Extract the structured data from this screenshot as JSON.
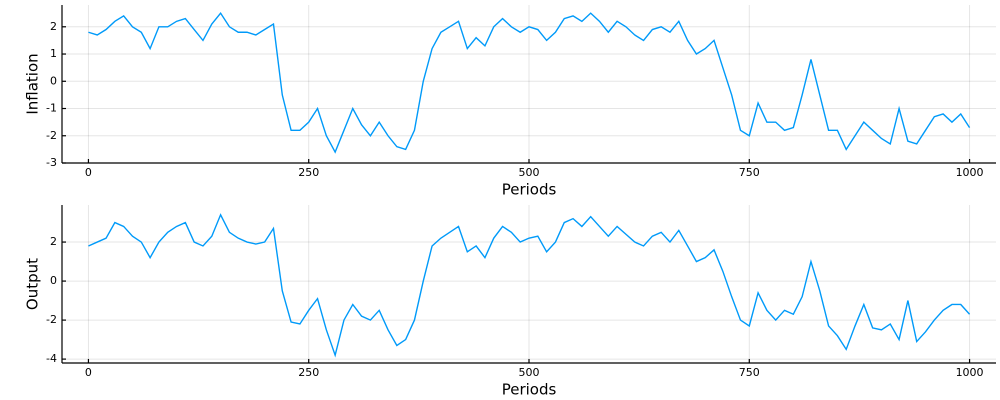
{
  "chart_data": [
    {
      "type": "line",
      "xlabel": "Periods",
      "ylabel": "Inflation",
      "color": "#009af9",
      "grid": true,
      "xlim": [
        -30,
        1030
      ],
      "xticks": [
        0,
        250,
        500,
        750,
        1000
      ],
      "ylim": [
        -3,
        2.8
      ],
      "yticks": [
        -3,
        -2,
        -1,
        0,
        1,
        2
      ],
      "x": [
        0,
        10,
        20,
        30,
        40,
        50,
        60,
        70,
        80,
        90,
        100,
        110,
        120,
        130,
        140,
        150,
        160,
        170,
        180,
        190,
        200,
        210,
        220,
        230,
        240,
        250,
        260,
        270,
        280,
        290,
        300,
        310,
        320,
        330,
        340,
        350,
        360,
        370,
        380,
        390,
        400,
        410,
        420,
        430,
        440,
        450,
        460,
        470,
        480,
        490,
        500,
        510,
        520,
        530,
        540,
        550,
        560,
        570,
        580,
        590,
        600,
        610,
        620,
        630,
        640,
        650,
        660,
        670,
        680,
        690,
        700,
        710,
        720,
        730,
        740,
        750,
        760,
        770,
        780,
        790,
        800,
        810,
        820,
        830,
        840,
        850,
        860,
        870,
        880,
        890,
        900,
        910,
        920,
        930,
        940,
        950,
        960,
        970,
        980,
        990,
        1000
      ],
      "values": [
        1.8,
        1.7,
        1.9,
        2.2,
        2.4,
        2.0,
        1.8,
        1.2,
        2.0,
        2.0,
        2.2,
        2.3,
        1.9,
        1.5,
        2.1,
        2.5,
        2.0,
        1.8,
        1.8,
        1.7,
        1.9,
        2.1,
        -0.5,
        -1.8,
        -1.8,
        -1.5,
        -1.0,
        -2.0,
        -2.6,
        -1.8,
        -1.0,
        -1.6,
        -2.0,
        -1.5,
        -2.0,
        -2.4,
        -2.5,
        -1.8,
        0.0,
        1.2,
        1.8,
        2.0,
        2.2,
        1.2,
        1.6,
        1.3,
        2.0,
        2.3,
        2.0,
        1.8,
        2.0,
        1.9,
        1.5,
        1.8,
        2.3,
        2.4,
        2.2,
        2.5,
        2.2,
        1.8,
        2.2,
        2.0,
        1.7,
        1.5,
        1.9,
        2.0,
        1.8,
        2.2,
        1.5,
        1.0,
        1.2,
        1.5,
        0.5,
        -0.5,
        -1.8,
        -2.0,
        -0.8,
        -1.5,
        -1.5,
        -1.8,
        -1.7,
        -0.5,
        0.8,
        -0.5,
        -1.8,
        -1.8,
        -2.5,
        -2.0,
        -1.5,
        -1.8,
        -2.1,
        -2.3,
        -1.0,
        -2.2,
        -2.3,
        -1.8,
        -1.3,
        -1.2,
        -1.5,
        -1.2,
        -1.7
      ]
    },
    {
      "type": "line",
      "xlabel": "Periods",
      "ylabel": "Output",
      "color": "#009af9",
      "grid": true,
      "xlim": [
        -30,
        1030
      ],
      "xticks": [
        0,
        250,
        500,
        750,
        1000
      ],
      "ylim": [
        -4.2,
        3.9
      ],
      "yticks": [
        -4,
        -2,
        0,
        2
      ],
      "x": [
        0,
        10,
        20,
        30,
        40,
        50,
        60,
        70,
        80,
        90,
        100,
        110,
        120,
        130,
        140,
        150,
        160,
        170,
        180,
        190,
        200,
        210,
        220,
        230,
        240,
        250,
        260,
        270,
        280,
        290,
        300,
        310,
        320,
        330,
        340,
        350,
        360,
        370,
        380,
        390,
        400,
        410,
        420,
        430,
        440,
        450,
        460,
        470,
        480,
        490,
        500,
        510,
        520,
        530,
        540,
        550,
        560,
        570,
        580,
        590,
        600,
        610,
        620,
        630,
        640,
        650,
        660,
        670,
        680,
        690,
        700,
        710,
        720,
        730,
        740,
        750,
        760,
        770,
        780,
        790,
        800,
        810,
        820,
        830,
        840,
        850,
        860,
        870,
        880,
        890,
        900,
        910,
        920,
        930,
        940,
        950,
        960,
        970,
        980,
        990,
        1000
      ],
      "values": [
        1.8,
        2.0,
        2.2,
        3.0,
        2.8,
        2.3,
        2.0,
        1.2,
        2.0,
        2.5,
        2.8,
        3.0,
        2.0,
        1.8,
        2.3,
        3.4,
        2.5,
        2.2,
        2.0,
        1.9,
        2.0,
        2.7,
        -0.5,
        -2.1,
        -2.2,
        -1.5,
        -0.9,
        -2.5,
        -3.8,
        -2.0,
        -1.2,
        -1.8,
        -2.0,
        -1.5,
        -2.5,
        -3.3,
        -3.0,
        -2.0,
        0.0,
        1.8,
        2.2,
        2.5,
        2.8,
        1.5,
        1.8,
        1.2,
        2.2,
        2.8,
        2.5,
        2.0,
        2.2,
        2.3,
        1.5,
        2.0,
        3.0,
        3.2,
        2.8,
        3.3,
        2.8,
        2.3,
        2.8,
        2.4,
        2.0,
        1.8,
        2.3,
        2.5,
        2.0,
        2.6,
        1.8,
        1.0,
        1.2,
        1.6,
        0.5,
        -0.8,
        -2.0,
        -2.3,
        -0.6,
        -1.5,
        -2.0,
        -1.5,
        -1.7,
        -0.8,
        1.0,
        -0.5,
        -2.3,
        -2.8,
        -3.5,
        -2.3,
        -1.2,
        -2.4,
        -2.5,
        -2.2,
        -3.0,
        -1.0,
        -3.1,
        -2.6,
        -2.0,
        -1.5,
        -1.2,
        -1.2,
        -1.7
      ]
    }
  ]
}
